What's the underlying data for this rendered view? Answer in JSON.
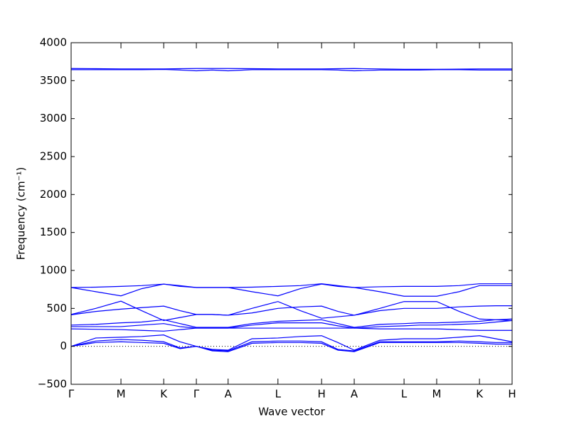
{
  "chart_data": {
    "type": "line",
    "xlabel": "Wave vector",
    "ylabel": "Frequency (cm⁻¹)",
    "xlim": [
      0,
      1
    ],
    "ylim": [
      -500,
      4000
    ],
    "yticks": [
      {
        "value": -500,
        "label": "−500"
      },
      0,
      500,
      1000,
      1500,
      2000,
      2500,
      3000,
      3500,
      4000
    ],
    "xticks": [
      {
        "value": 0,
        "label": "Γ"
      },
      {
        "value": 0.113,
        "label": "M"
      },
      {
        "value": 0.21,
        "label": "K"
      },
      {
        "value": 0.284,
        "label": "Γ"
      },
      {
        "value": 0.356,
        "label": "A"
      },
      {
        "value": 0.469,
        "label": "L"
      },
      {
        "value": 0.568,
        "label": "H"
      },
      {
        "value": 0.642,
        "label": "A"
      },
      {
        "value": 0.755,
        "label": "L"
      },
      {
        "value": 0.829,
        "label": "M"
      },
      {
        "value": 0.926,
        "label": "K"
      },
      {
        "value": 1,
        "label": "H"
      }
    ],
    "reference_line_y": 0,
    "x": [
      0,
      0.056,
      0.113,
      0.16,
      0.21,
      0.247,
      0.284,
      0.32,
      0.356,
      0.41,
      0.469,
      0.52,
      0.568,
      0.605,
      0.642,
      0.7,
      0.755,
      0.79,
      0.829,
      0.88,
      0.926,
      0.963,
      1
    ],
    "series": [
      {
        "color": "#0000ff",
        "values": [
          3660,
          3658,
          3655,
          3655,
          3655,
          3658,
          3660,
          3660,
          3660,
          3658,
          3655,
          3655,
          3655,
          3658,
          3660,
          3655,
          3650,
          3650,
          3650,
          3652,
          3655,
          3655,
          3655
        ]
      },
      {
        "color": "#0000ff",
        "values": [
          3645,
          3645,
          3645,
          3645,
          3648,
          3640,
          3630,
          3640,
          3630,
          3645,
          3645,
          3645,
          3645,
          3640,
          3630,
          3640,
          3640,
          3640,
          3645,
          3645,
          3640,
          3640,
          3640
        ]
      },
      {
        "color": "#0000ff",
        "values": [
          775,
          780,
          790,
          800,
          820,
          800,
          775,
          775,
          775,
          780,
          790,
          800,
          825,
          800,
          775,
          785,
          790,
          790,
          790,
          800,
          825,
          825,
          825
        ]
      },
      {
        "color": "#0000ff",
        "values": [
          775,
          720,
          665,
          760,
          820,
          790,
          775,
          775,
          775,
          720,
          665,
          760,
          820,
          790,
          775,
          720,
          660,
          660,
          660,
          720,
          800,
          800,
          800
        ]
      },
      {
        "color": "#0000ff",
        "values": [
          420,
          500,
          595,
          470,
          340,
          380,
          420,
          420,
          410,
          500,
          590,
          470,
          370,
          390,
          410,
          500,
          590,
          590,
          590,
          460,
          360,
          350,
          340
        ]
      },
      {
        "color": "#0000ff",
        "values": [
          415,
          460,
          490,
          510,
          530,
          470,
          420,
          420,
          410,
          440,
          500,
          520,
          530,
          460,
          410,
          470,
          500,
          500,
          500,
          520,
          530,
          535,
          535
        ]
      },
      {
        "color": "#0000ff",
        "values": [
          280,
          290,
          310,
          320,
          350,
          300,
          250,
          250,
          250,
          300,
          330,
          340,
          350,
          300,
          250,
          290,
          300,
          310,
          310,
          320,
          330,
          350,
          360
        ]
      },
      {
        "color": "#0000ff",
        "values": [
          260,
          260,
          260,
          280,
          300,
          260,
          240,
          240,
          240,
          280,
          310,
          310,
          310,
          270,
          240,
          260,
          270,
          280,
          280,
          290,
          300,
          320,
          340
        ]
      },
      {
        "color": "#0000ff",
        "values": [
          230,
          225,
          220,
          210,
          200,
          220,
          240,
          240,
          240,
          240,
          240,
          240,
          240,
          240,
          240,
          230,
          230,
          230,
          230,
          220,
          210,
          210,
          210
        ]
      },
      {
        "color": "#0000ff",
        "values": [
          0,
          110,
          120,
          130,
          150,
          60,
          0,
          -40,
          -50,
          100,
          110,
          130,
          140,
          50,
          -50,
          80,
          100,
          100,
          100,
          120,
          140,
          100,
          60
        ]
      },
      {
        "color": "#0000ff",
        "values": [
          0,
          70,
          90,
          80,
          60,
          -20,
          0,
          -50,
          -60,
          60,
          70,
          70,
          60,
          -40,
          -60,
          60,
          60,
          60,
          60,
          70,
          60,
          50,
          50
        ]
      },
      {
        "color": "#0000ff",
        "values": [
          0,
          50,
          60,
          50,
          40,
          -30,
          0,
          -60,
          -70,
          40,
          50,
          50,
          40,
          -50,
          -70,
          50,
          50,
          50,
          50,
          50,
          40,
          30,
          30
        ]
      }
    ]
  }
}
